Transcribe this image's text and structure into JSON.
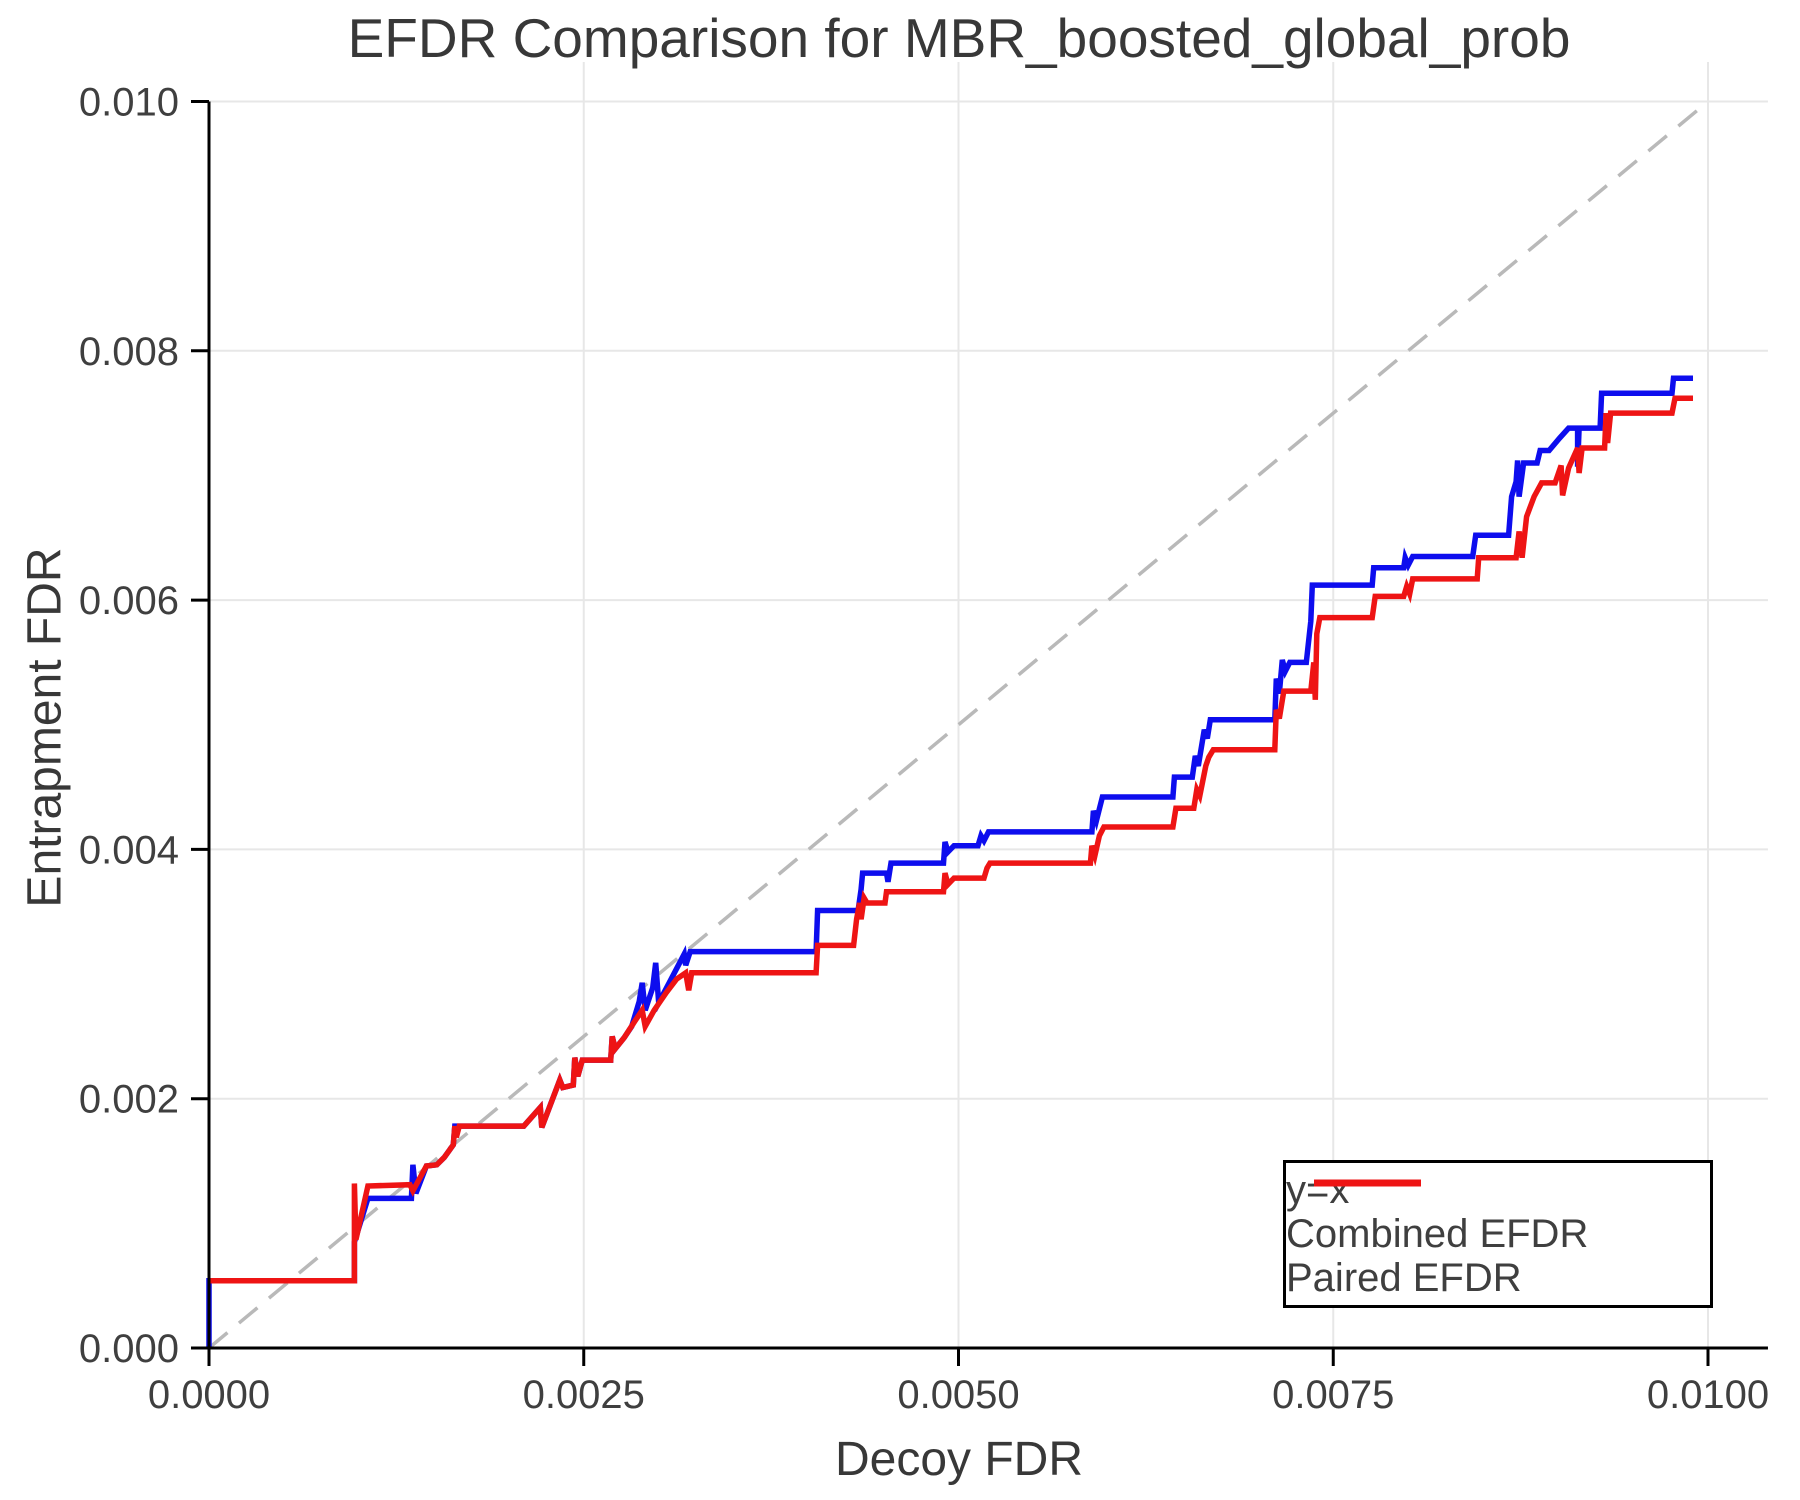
{
  "title": "EFDR Comparison for MBR_boosted_global_prob",
  "colors": {
    "combined": "#0d0dee",
    "paired": "#ee1414",
    "identity": "#b9b9b9",
    "grid": "#e7e7e7",
    "spine": "#000000",
    "text": "#3f3f3f"
  },
  "legend": {
    "items": [
      {
        "label": "y=x",
        "series": "identity",
        "style": "dashed"
      },
      {
        "label": "Combined EFDR",
        "series": "combined",
        "style": "solid"
      },
      {
        "label": "Paired EFDR",
        "series": "paired",
        "style": "solid"
      }
    ]
  },
  "chart_data": {
    "type": "line",
    "title": "EFDR Comparison for MBR_boosted_global_prob",
    "xlabel": "Decoy FDR",
    "ylabel": "Entrapment FDR",
    "xlim": [
      0,
      0.0104
    ],
    "ylim": [
      0,
      0.01033
    ],
    "grid": true,
    "legend_position": "lower right",
    "x_ticks": [
      0,
      0.0025,
      0.005,
      0.0075,
      0.01
    ],
    "x_tick_labels": [
      "0.0000",
      "0.0025",
      "0.0050",
      "0.0075",
      "0.0100"
    ],
    "y_ticks": [
      0,
      0.002,
      0.004,
      0.006,
      0.008,
      0.01
    ],
    "y_tick_labels": [
      "0.000",
      "0.002",
      "0.004",
      "0.006",
      "0.008",
      "0.010"
    ],
    "identity_line": {
      "name": "y=x",
      "from": [
        0,
        0
      ],
      "to": [
        0.01,
        0.01
      ],
      "style": "dashed"
    },
    "series": [
      {
        "name": "Combined EFDR",
        "color_key": "combined",
        "points": [
          [
            0,
            0
          ],
          [
            0,
            0.00054
          ],
          [
            0.00097,
            0.00054
          ],
          [
            0.00097,
            0.00085
          ],
          [
            0.00106,
            0.0012
          ],
          [
            0.00135,
            0.0012
          ],
          [
            0.00136,
            0.00147
          ],
          [
            0.00138,
            0.00124
          ],
          [
            0.00145,
            0.00146
          ],
          [
            0.00152,
            0.00147
          ],
          [
            0.00157,
            0.00153
          ],
          [
            0.00163,
            0.00163
          ],
          [
            0.00164,
            0.00178
          ],
          [
            0.0021,
            0.00178
          ],
          [
            0.00221,
            0.00193
          ],
          [
            0.00222,
            0.00177
          ],
          [
            0.00234,
            0.00215
          ],
          [
            0.00236,
            0.00209
          ],
          [
            0.00243,
            0.00211
          ],
          [
            0.00244,
            0.00233
          ],
          [
            0.00246,
            0.00218
          ],
          [
            0.00249,
            0.00231
          ],
          [
            0.00268,
            0.00231
          ],
          [
            0.00269,
            0.0025
          ],
          [
            0.00271,
            0.0024
          ],
          [
            0.00277,
            0.00249
          ],
          [
            0.00282,
            0.00258
          ],
          [
            0.00287,
            0.00278
          ],
          [
            0.00289,
            0.00293
          ],
          [
            0.00291,
            0.00271
          ],
          [
            0.00296,
            0.00289
          ],
          [
            0.00298,
            0.00309
          ],
          [
            0.003,
            0.00277
          ],
          [
            0.00307,
            0.00293
          ],
          [
            0.00317,
            0.00316
          ],
          [
            0.00318,
            0.00307
          ],
          [
            0.00321,
            0.00318
          ],
          [
            0.00405,
            0.00318
          ],
          [
            0.00406,
            0.00351
          ],
          [
            0.00433,
            0.00351
          ],
          [
            0.00435,
            0.00368
          ],
          [
            0.00436,
            0.00381
          ],
          [
            0.00452,
            0.00381
          ],
          [
            0.00453,
            0.00374
          ],
          [
            0.00455,
            0.00389
          ],
          [
            0.0049,
            0.00389
          ],
          [
            0.00491,
            0.00406
          ],
          [
            0.00493,
            0.00398
          ],
          [
            0.00497,
            0.00403
          ],
          [
            0.00513,
            0.00403
          ],
          [
            0.00515,
            0.00411
          ],
          [
            0.00517,
            0.00407
          ],
          [
            0.0052,
            0.00414
          ],
          [
            0.00589,
            0.00414
          ],
          [
            0.0059,
            0.00431
          ],
          [
            0.00592,
            0.00423
          ],
          [
            0.00596,
            0.00442
          ],
          [
            0.00643,
            0.00442
          ],
          [
            0.00644,
            0.00458
          ],
          [
            0.00656,
            0.00458
          ],
          [
            0.00658,
            0.00475
          ],
          [
            0.0066,
            0.00467
          ],
          [
            0.00664,
            0.00496
          ],
          [
            0.00666,
            0.00489
          ],
          [
            0.00668,
            0.00504
          ],
          [
            0.00711,
            0.00504
          ],
          [
            0.00712,
            0.00537
          ],
          [
            0.00714,
            0.00525
          ],
          [
            0.00716,
            0.00552
          ],
          [
            0.00718,
            0.00543
          ],
          [
            0.00721,
            0.0055
          ],
          [
            0.00732,
            0.0055
          ],
          [
            0.00735,
            0.00583
          ],
          [
            0.00736,
            0.00612
          ],
          [
            0.00776,
            0.00612
          ],
          [
            0.00777,
            0.00626
          ],
          [
            0.00797,
            0.00626
          ],
          [
            0.00798,
            0.00634
          ],
          [
            0.008,
            0.00628
          ],
          [
            0.00803,
            0.00635
          ],
          [
            0.00843,
            0.00635
          ],
          [
            0.00845,
            0.00652
          ],
          [
            0.00867,
            0.00652
          ],
          [
            0.00869,
            0.00683
          ],
          [
            0.00872,
            0.00695
          ],
          [
            0.00873,
            0.00712
          ],
          [
            0.00874,
            0.00683
          ],
          [
            0.00877,
            0.0071
          ],
          [
            0.00886,
            0.0071
          ],
          [
            0.00888,
            0.0072
          ],
          [
            0.00894,
            0.0072
          ],
          [
            0.00901,
            0.0073
          ],
          [
            0.00907,
            0.00738
          ],
          [
            0.00913,
            0.00738
          ],
          [
            0.00913,
            0.00707
          ],
          [
            0.00914,
            0.00738
          ],
          [
            0.00928,
            0.00738
          ],
          [
            0.00929,
            0.00766
          ],
          [
            0.00976,
            0.00766
          ],
          [
            0.00977,
            0.00778
          ],
          [
            0.0099,
            0.00778
          ]
        ]
      },
      {
        "name": "Paired EFDR",
        "color_key": "paired",
        "points": [
          [
            0,
            0.00054
          ],
          [
            0.00097,
            0.00054
          ],
          [
            0.00097,
            0.00132
          ],
          [
            0.00098,
            0.00087
          ],
          [
            0.00106,
            0.0013
          ],
          [
            0.00134,
            0.00131
          ],
          [
            0.00136,
            0.00126
          ],
          [
            0.00145,
            0.00146
          ],
          [
            0.00152,
            0.00147
          ],
          [
            0.00157,
            0.00153
          ],
          [
            0.00163,
            0.00163
          ],
          [
            0.00164,
            0.00178
          ],
          [
            0.00165,
            0.00169
          ],
          [
            0.00167,
            0.00178
          ],
          [
            0.0021,
            0.00178
          ],
          [
            0.00221,
            0.00193
          ],
          [
            0.00222,
            0.00177
          ],
          [
            0.00234,
            0.00215
          ],
          [
            0.00236,
            0.00209
          ],
          [
            0.00243,
            0.00211
          ],
          [
            0.00244,
            0.00233
          ],
          [
            0.00246,
            0.00218
          ],
          [
            0.00249,
            0.00231
          ],
          [
            0.00268,
            0.00231
          ],
          [
            0.00269,
            0.0025
          ],
          [
            0.00271,
            0.0024
          ],
          [
            0.00277,
            0.00249
          ],
          [
            0.00284,
            0.00262
          ],
          [
            0.00289,
            0.00271
          ],
          [
            0.00291,
            0.00258
          ],
          [
            0.00297,
            0.00271
          ],
          [
            0.00305,
            0.00285
          ],
          [
            0.00312,
            0.00296
          ],
          [
            0.00318,
            0.00301
          ],
          [
            0.0032,
            0.00287
          ],
          [
            0.00322,
            0.00301
          ],
          [
            0.00405,
            0.00301
          ],
          [
            0.00406,
            0.00323
          ],
          [
            0.0043,
            0.00323
          ],
          [
            0.00432,
            0.00344
          ],
          [
            0.00434,
            0.00357
          ],
          [
            0.00435,
            0.00344
          ],
          [
            0.00437,
            0.00361
          ],
          [
            0.00439,
            0.00357
          ],
          [
            0.00451,
            0.00357
          ],
          [
            0.00452,
            0.00366
          ],
          [
            0.0049,
            0.00366
          ],
          [
            0.00491,
            0.00381
          ],
          [
            0.00493,
            0.00372
          ],
          [
            0.00497,
            0.00377
          ],
          [
            0.00517,
            0.00377
          ],
          [
            0.00519,
            0.00385
          ],
          [
            0.00521,
            0.00389
          ],
          [
            0.00588,
            0.00389
          ],
          [
            0.00589,
            0.00403
          ],
          [
            0.00591,
            0.00395
          ],
          [
            0.00594,
            0.00411
          ],
          [
            0.00597,
            0.00418
          ],
          [
            0.00643,
            0.00418
          ],
          [
            0.00645,
            0.00433
          ],
          [
            0.00657,
            0.00433
          ],
          [
            0.00659,
            0.00448
          ],
          [
            0.00661,
            0.00443
          ],
          [
            0.00665,
            0.00467
          ],
          [
            0.00667,
            0.00474
          ],
          [
            0.0067,
            0.0048
          ],
          [
            0.00711,
            0.0048
          ],
          [
            0.00712,
            0.00512
          ],
          [
            0.00714,
            0.00505
          ],
          [
            0.00717,
            0.00527
          ],
          [
            0.00735,
            0.00527
          ],
          [
            0.00737,
            0.0055
          ],
          [
            0.00738,
            0.0052
          ],
          [
            0.00739,
            0.00573
          ],
          [
            0.00741,
            0.00586
          ],
          [
            0.00776,
            0.00586
          ],
          [
            0.00778,
            0.00603
          ],
          [
            0.00797,
            0.00603
          ],
          [
            0.00799,
            0.00611
          ],
          [
            0.00801,
            0.00605
          ],
          [
            0.00803,
            0.00617
          ],
          [
            0.00846,
            0.00617
          ],
          [
            0.00847,
            0.00634
          ],
          [
            0.00872,
            0.00634
          ],
          [
            0.00874,
            0.00655
          ],
          [
            0.00876,
            0.00634
          ],
          [
            0.00879,
            0.00667
          ],
          [
            0.00884,
            0.00683
          ],
          [
            0.00889,
            0.00694
          ],
          [
            0.00898,
            0.00694
          ],
          [
            0.00902,
            0.00708
          ],
          [
            0.00903,
            0.00684
          ],
          [
            0.00907,
            0.00706
          ],
          [
            0.00913,
            0.00722
          ],
          [
            0.00914,
            0.00702
          ],
          [
            0.00916,
            0.00722
          ],
          [
            0.00931,
            0.00722
          ],
          [
            0.00932,
            0.0075
          ],
          [
            0.00933,
            0.00726
          ],
          [
            0.00935,
            0.0075
          ],
          [
            0.00976,
            0.0075
          ],
          [
            0.00978,
            0.00762
          ],
          [
            0.0099,
            0.00762
          ]
        ]
      }
    ]
  }
}
